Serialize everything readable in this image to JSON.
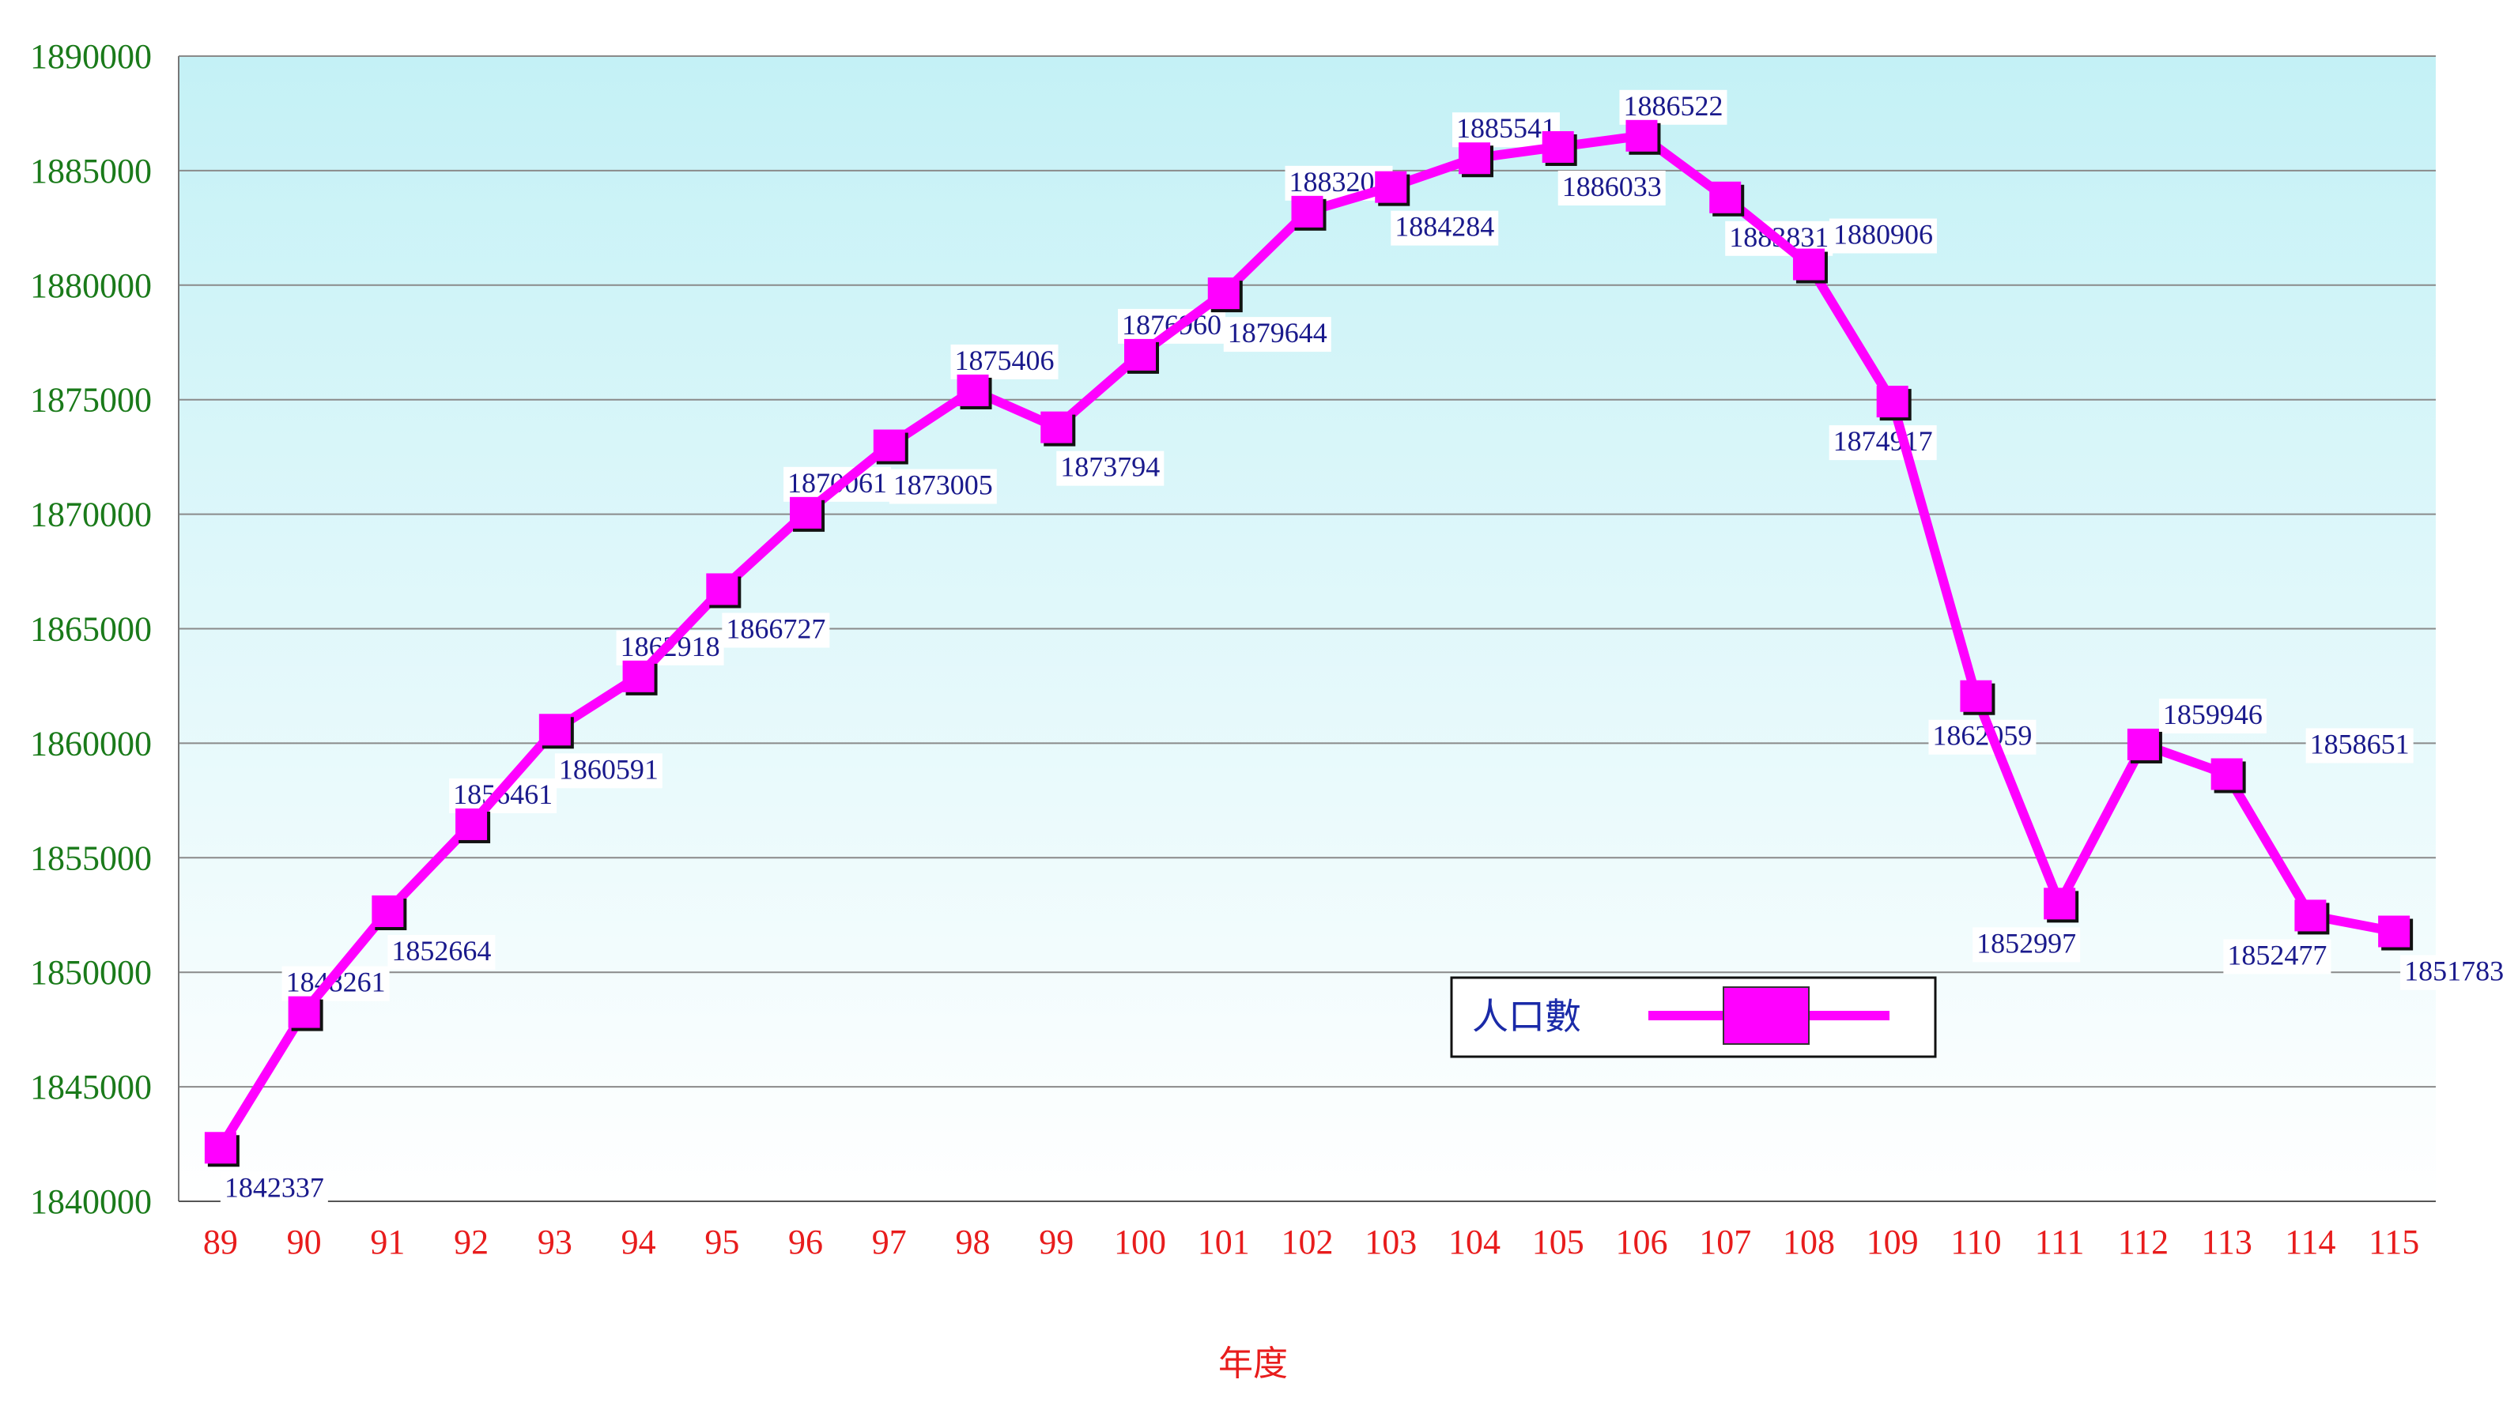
{
  "chart_data": {
    "type": "line",
    "title": "",
    "xlabel": "年度",
    "ylabel": "",
    "ylim": [
      1840000,
      1890000
    ],
    "yticks": [
      1840000,
      1845000,
      1850000,
      1855000,
      1860000,
      1865000,
      1870000,
      1875000,
      1880000,
      1885000,
      1890000
    ],
    "ytick_labels": [
      "1840000",
      "1845000",
      "1850000",
      "1855000",
      "1860000",
      "1865000",
      "1870000",
      "1875000",
      "1880000",
      "1885000",
      "1890000"
    ],
    "categories": [
      "89",
      "90",
      "91",
      "92",
      "93",
      "94",
      "95",
      "96",
      "97",
      "98",
      "99",
      "100",
      "101",
      "102",
      "103",
      "104",
      "105",
      "106",
      "107",
      "108",
      "109",
      "110",
      "111",
      "112",
      "113",
      "114",
      "115"
    ],
    "grid": true,
    "legend_position": "bottom-right",
    "series": [
      {
        "name": "人口數",
        "color": "#ff00ff",
        "marker": "square",
        "values": [
          1842337,
          1848261,
          1852664,
          1856461,
          1860591,
          1862918,
          1866727,
          1870061,
          1873005,
          1875406,
          1873794,
          1876960,
          1879644,
          1883208,
          1884284,
          1885541,
          1886033,
          1886522,
          1883831,
          1880906,
          1874917,
          1862059,
          1852997,
          1859946,
          1858651,
          1852477,
          1851783
        ],
        "labels": [
          "1842337",
          "1848261",
          "1852664",
          "1856461",
          "1860591",
          "1862918",
          "1866727",
          "1870061",
          "1873005",
          "1875406",
          "1873794",
          "1876960",
          "1879644",
          "1883208",
          "1884284",
          "1885541",
          "1886033",
          "1886522",
          "1883831",
          "1880906",
          "1874917",
          "1862059",
          "1852997",
          "1859946",
          "1858651",
          "1852477",
          "1851783"
        ]
      }
    ]
  }
}
